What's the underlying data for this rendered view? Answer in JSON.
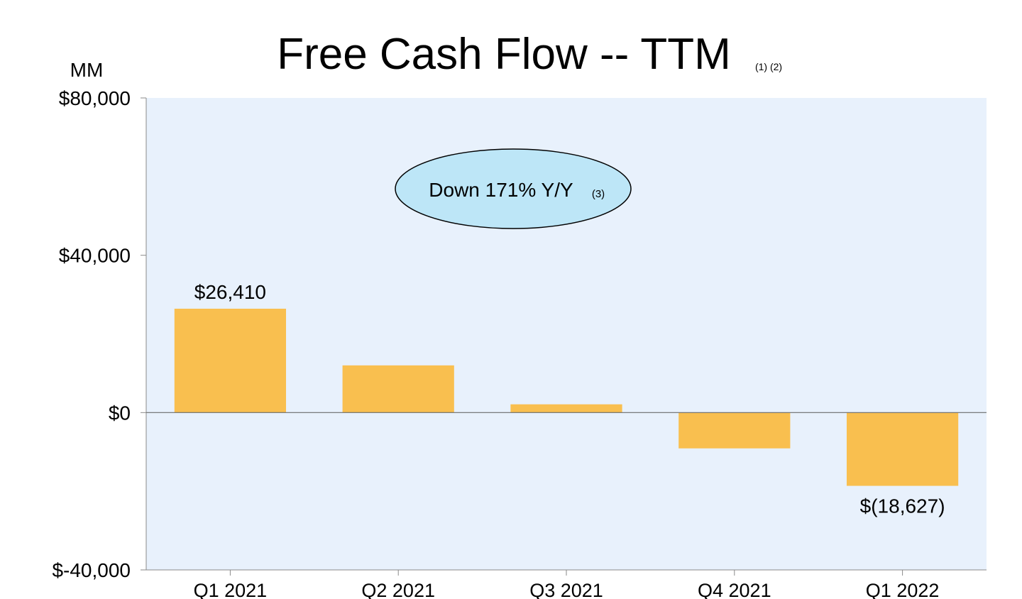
{
  "chart_data": {
    "type": "bar",
    "title": "Free Cash Flow -- TTM",
    "title_footnotes": "(1) (2)",
    "unit_label": "MM",
    "categories": [
      "Q1 2021",
      "Q2 2021",
      "Q3 2021",
      "Q4 2021",
      "Q1 2022"
    ],
    "values": [
      26410,
      12000,
      2100,
      -9100,
      -18627
    ],
    "data_labels": [
      {
        "index": 0,
        "text": "$26,410"
      },
      {
        "index": 4,
        "text": "$(18,627)"
      }
    ],
    "y_ticks": [
      {
        "value": 80000,
        "label": "$80,000"
      },
      {
        "value": 40000,
        "label": "$40,000"
      },
      {
        "value": 0,
        "label": "$0"
      },
      {
        "value": -40000,
        "label": "$-40,000"
      }
    ],
    "ylim": [
      -40000,
      80000
    ],
    "grid": false,
    "annotation": {
      "text": "Down 171% Y/Y",
      "footnote": "(3)",
      "fill_color": "#bde6f7"
    },
    "colors": {
      "bar": "#f9bf4f",
      "plot_background": "#e8f1fc",
      "axis": "#8a8a8a",
      "zero_line": "#6b6b6b"
    }
  }
}
